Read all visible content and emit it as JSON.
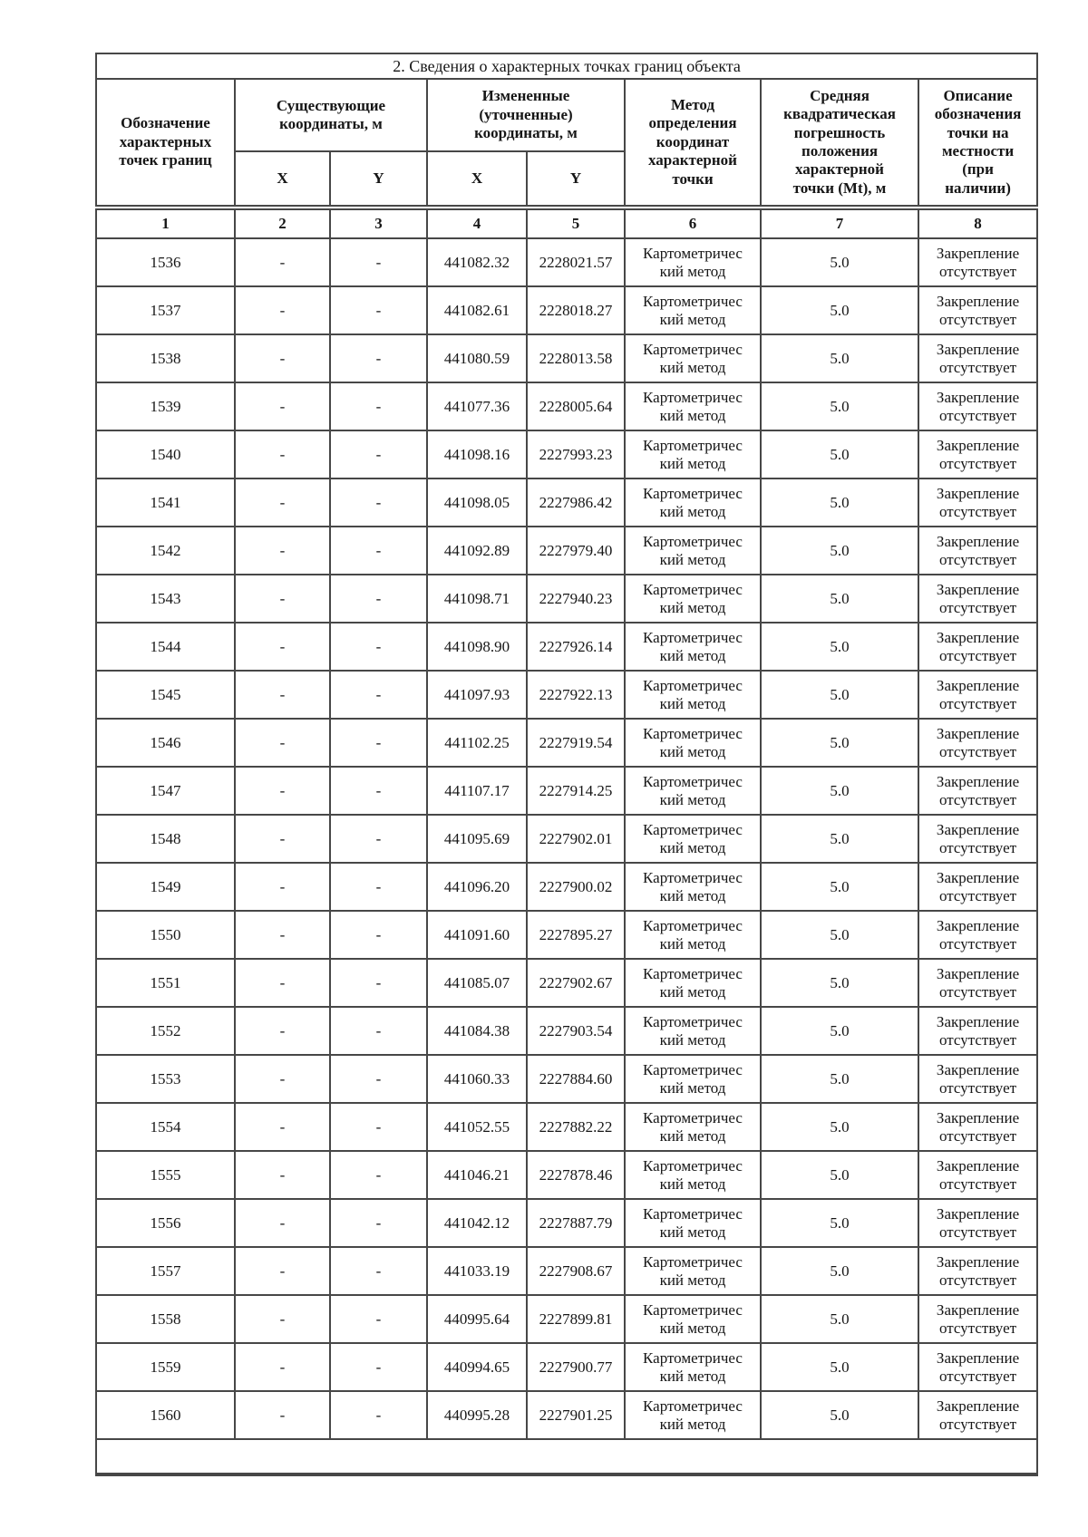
{
  "section": {
    "title": "2. Сведения о характерных точках границ объекта"
  },
  "table": {
    "headers": {
      "point_designation": "Обозначение\nхарактерных\nточек границ",
      "existing_coords": "Существующие\nкоординаты, м",
      "changed_coords": "Измененные\n(уточненные)\nкоординаты, м",
      "x": "X",
      "y": "Y",
      "method": "Метод\nопределения\nкоординат\nхарактерной\nточки",
      "mse": "Средняя\nквадратическая\nпогрешность\nположения\nхарактерной\nточки (Mt), м",
      "description": "Описание\nобозначения\nточки на\nместности\n(при\nналичии)"
    },
    "column_numbers": [
      "1",
      "2",
      "3",
      "4",
      "5",
      "6",
      "7",
      "8"
    ],
    "rows": [
      {
        "point": "1536",
        "x_existing": "-",
        "y_existing": "-",
        "x_changed": "441082.32",
        "y_changed": "2228021.57",
        "method": "Картометричес\nкий метод",
        "mse": "5.0",
        "description": "Закрепление\nотсутствует"
      },
      {
        "point": "1537",
        "x_existing": "-",
        "y_existing": "-",
        "x_changed": "441082.61",
        "y_changed": "2228018.27",
        "method": "Картометричес\nкий метод",
        "mse": "5.0",
        "description": "Закрепление\nотсутствует"
      },
      {
        "point": "1538",
        "x_existing": "-",
        "y_existing": "-",
        "x_changed": "441080.59",
        "y_changed": "2228013.58",
        "method": "Картометричес\nкий метод",
        "mse": "5.0",
        "description": "Закрепление\nотсутствует"
      },
      {
        "point": "1539",
        "x_existing": "-",
        "y_existing": "-",
        "x_changed": "441077.36",
        "y_changed": "2228005.64",
        "method": "Картометричес\nкий метод",
        "mse": "5.0",
        "description": "Закрепление\nотсутствует"
      },
      {
        "point": "1540",
        "x_existing": "-",
        "y_existing": "-",
        "x_changed": "441098.16",
        "y_changed": "2227993.23",
        "method": "Картометричес\nкий метод",
        "mse": "5.0",
        "description": "Закрепление\nотсутствует"
      },
      {
        "point": "1541",
        "x_existing": "-",
        "y_existing": "-",
        "x_changed": "441098.05",
        "y_changed": "2227986.42",
        "method": "Картометричес\nкий метод",
        "mse": "5.0",
        "description": "Закрепление\nотсутствует"
      },
      {
        "point": "1542",
        "x_existing": "-",
        "y_existing": "-",
        "x_changed": "441092.89",
        "y_changed": "2227979.40",
        "method": "Картометричес\nкий метод",
        "mse": "5.0",
        "description": "Закрепление\nотсутствует"
      },
      {
        "point": "1543",
        "x_existing": "-",
        "y_existing": "-",
        "x_changed": "441098.71",
        "y_changed": "2227940.23",
        "method": "Картометричес\nкий метод",
        "mse": "5.0",
        "description": "Закрепление\nотсутствует"
      },
      {
        "point": "1544",
        "x_existing": "-",
        "y_existing": "-",
        "x_changed": "441098.90",
        "y_changed": "2227926.14",
        "method": "Картометричес\nкий метод",
        "mse": "5.0",
        "description": "Закрепление\nотсутствует"
      },
      {
        "point": "1545",
        "x_existing": "-",
        "y_existing": "-",
        "x_changed": "441097.93",
        "y_changed": "2227922.13",
        "method": "Картометричес\nкий метод",
        "mse": "5.0",
        "description": "Закрепление\nотсутствует"
      },
      {
        "point": "1546",
        "x_existing": "-",
        "y_existing": "-",
        "x_changed": "441102.25",
        "y_changed": "2227919.54",
        "method": "Картометричес\nкий метод",
        "mse": "5.0",
        "description": "Закрепление\nотсутствует"
      },
      {
        "point": "1547",
        "x_existing": "-",
        "y_existing": "-",
        "x_changed": "441107.17",
        "y_changed": "2227914.25",
        "method": "Картометричес\nкий метод",
        "mse": "5.0",
        "description": "Закрепление\nотсутствует"
      },
      {
        "point": "1548",
        "x_existing": "-",
        "y_existing": "-",
        "x_changed": "441095.69",
        "y_changed": "2227902.01",
        "method": "Картометричес\nкий метод",
        "mse": "5.0",
        "description": "Закрепление\nотсутствует"
      },
      {
        "point": "1549",
        "x_existing": "-",
        "y_existing": "-",
        "x_changed": "441096.20",
        "y_changed": "2227900.02",
        "method": "Картометричес\nкий метод",
        "mse": "5.0",
        "description": "Закрепление\nотсутствует"
      },
      {
        "point": "1550",
        "x_existing": "-",
        "y_existing": "-",
        "x_changed": "441091.60",
        "y_changed": "2227895.27",
        "method": "Картометричес\nкий метод",
        "mse": "5.0",
        "description": "Закрепление\nотсутствует"
      },
      {
        "point": "1551",
        "x_existing": "-",
        "y_existing": "-",
        "x_changed": "441085.07",
        "y_changed": "2227902.67",
        "method": "Картометричес\nкий метод",
        "mse": "5.0",
        "description": "Закрепление\nотсутствует"
      },
      {
        "point": "1552",
        "x_existing": "-",
        "y_existing": "-",
        "x_changed": "441084.38",
        "y_changed": "2227903.54",
        "method": "Картометричес\nкий метод",
        "mse": "5.0",
        "description": "Закрепление\nотсутствует"
      },
      {
        "point": "1553",
        "x_existing": "-",
        "y_existing": "-",
        "x_changed": "441060.33",
        "y_changed": "2227884.60",
        "method": "Картометричес\nкий метод",
        "mse": "5.0",
        "description": "Закрепление\nотсутствует"
      },
      {
        "point": "1554",
        "x_existing": "-",
        "y_existing": "-",
        "x_changed": "441052.55",
        "y_changed": "2227882.22",
        "method": "Картометричес\nкий метод",
        "mse": "5.0",
        "description": "Закрепление\nотсутствует"
      },
      {
        "point": "1555",
        "x_existing": "-",
        "y_existing": "-",
        "x_changed": "441046.21",
        "y_changed": "2227878.46",
        "method": "Картометричес\nкий метод",
        "mse": "5.0",
        "description": "Закрепление\nотсутствует"
      },
      {
        "point": "1556",
        "x_existing": "-",
        "y_existing": "-",
        "x_changed": "441042.12",
        "y_changed": "2227887.79",
        "method": "Картометричес\nкий метод",
        "mse": "5.0",
        "description": "Закрепление\nотсутствует"
      },
      {
        "point": "1557",
        "x_existing": "-",
        "y_existing": "-",
        "x_changed": "441033.19",
        "y_changed": "2227908.67",
        "method": "Картометричес\nкий метод",
        "mse": "5.0",
        "description": "Закрепление\nотсутствует"
      },
      {
        "point": "1558",
        "x_existing": "-",
        "y_existing": "-",
        "x_changed": "440995.64",
        "y_changed": "2227899.81",
        "method": "Картометричес\nкий метод",
        "mse": "5.0",
        "description": "Закрепление\nотсутствует"
      },
      {
        "point": "1559",
        "x_existing": "-",
        "y_existing": "-",
        "x_changed": "440994.65",
        "y_changed": "2227900.77",
        "method": "Картометричес\nкий метод",
        "mse": "5.0",
        "description": "Закрепление\nотсутствует"
      },
      {
        "point": "1560",
        "x_existing": "-",
        "y_existing": "-",
        "x_changed": "440995.28",
        "y_changed": "2227901.25",
        "method": "Картометричес\nкий метод",
        "mse": "5.0",
        "description": "Закрепление\nотсутствует"
      }
    ]
  }
}
